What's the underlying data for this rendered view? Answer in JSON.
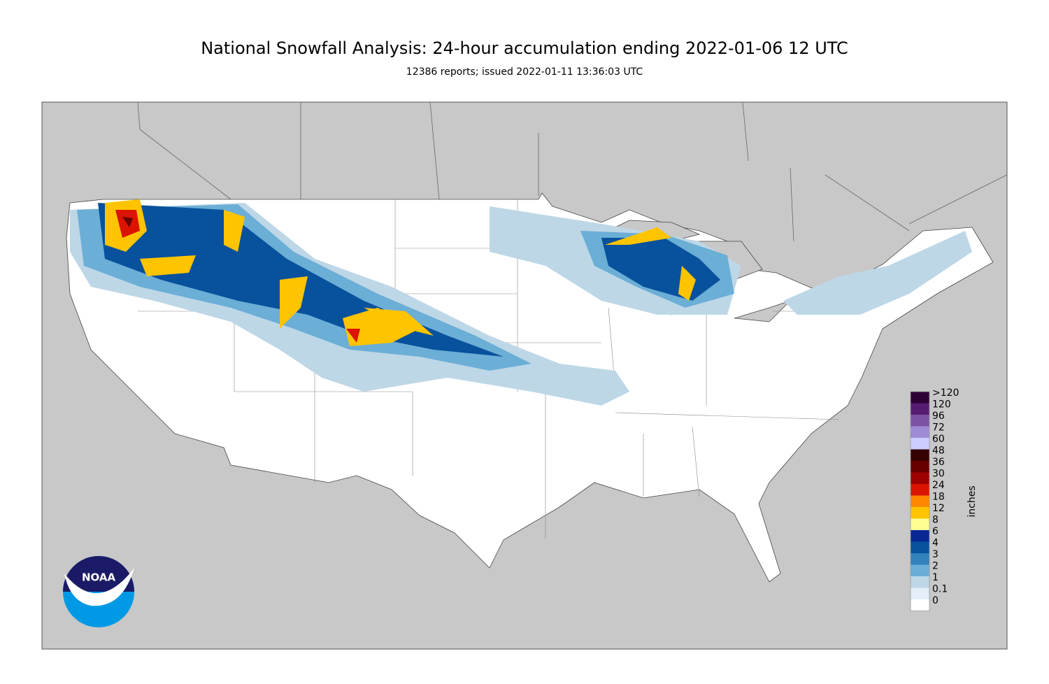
{
  "header": {
    "title": "National Snowfall Analysis: 24-hour accumulation ending 2022-01-06 12 UTC",
    "subtitle": "12386 reports; issued 2022-01-11 13:36:03 UTC"
  },
  "logo": {
    "text": "NOAA"
  },
  "legend": {
    "unit": "inches",
    "items": [
      {
        "label": ">120",
        "color": "#2e0033"
      },
      {
        "label": "120",
        "color": "#561c72"
      },
      {
        "label": "96",
        "color": "#7c52a5"
      },
      {
        "label": "72",
        "color": "#9f8cd8"
      },
      {
        "label": "60",
        "color": "#ccccff"
      },
      {
        "label": "48",
        "color": "#360000"
      },
      {
        "label": "36",
        "color": "#690000"
      },
      {
        "label": "30",
        "color": "#9e0000"
      },
      {
        "label": "24",
        "color": "#db1400"
      },
      {
        "label": "18",
        "color": "#ff8700"
      },
      {
        "label": "12",
        "color": "#ffc400"
      },
      {
        "label": "8",
        "color": "#ffff96"
      },
      {
        "label": "6",
        "color": "#082694"
      },
      {
        "label": "4",
        "color": "#08519c"
      },
      {
        "label": "3",
        "color": "#3182bd"
      },
      {
        "label": "2",
        "color": "#6baed6"
      },
      {
        "label": "1",
        "color": "#bdd7e7"
      },
      {
        "label": "0.1",
        "color": "#e4eef9"
      },
      {
        "label": "0",
        "color": "#ffffff"
      }
    ]
  }
}
